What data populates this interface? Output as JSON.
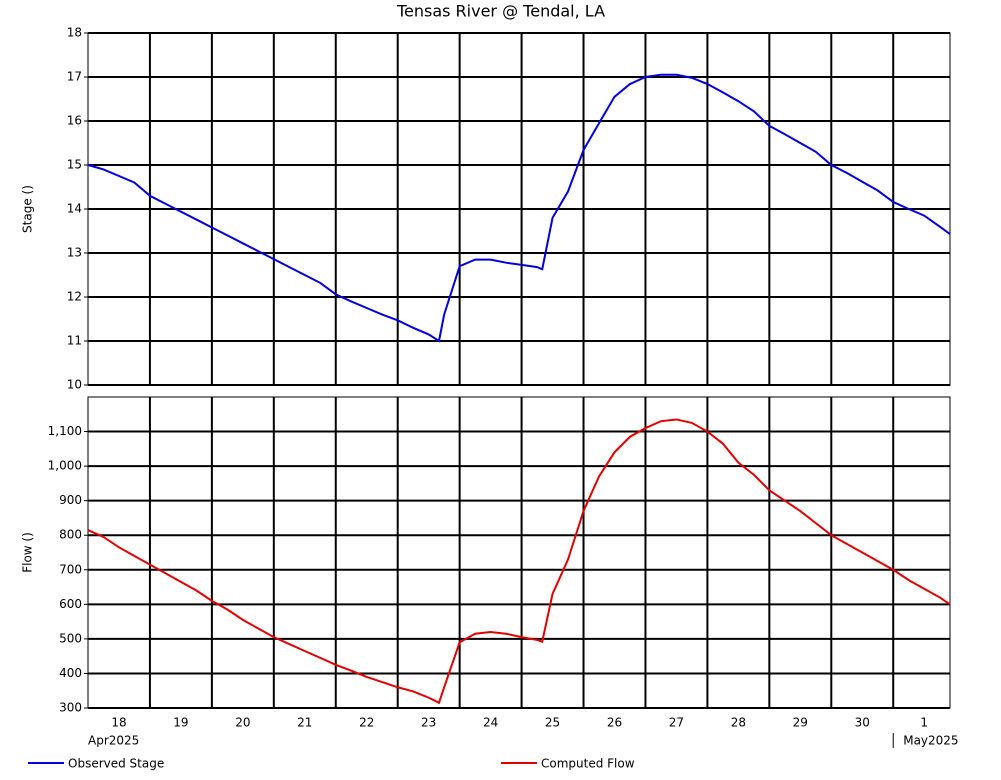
{
  "chart_data": [
    {
      "type": "line",
      "title": "Tensas River @ Tendal, LA",
      "ylabel": "Stage ()",
      "x": [
        "2025-04-18T00:00",
        "2025-04-18T06:00",
        "2025-04-18T12:00",
        "2025-04-18T18:00",
        "2025-04-19T00:00",
        "2025-04-19T06:00",
        "2025-04-19T12:00",
        "2025-04-19T18:00",
        "2025-04-20T00:00",
        "2025-04-20T06:00",
        "2025-04-20T12:00",
        "2025-04-20T18:00",
        "2025-04-21T00:00",
        "2025-04-21T06:00",
        "2025-04-21T12:00",
        "2025-04-21T18:00",
        "2025-04-22T00:00",
        "2025-04-22T06:00",
        "2025-04-22T12:00",
        "2025-04-22T18:00",
        "2025-04-23T00:00",
        "2025-04-23T06:00",
        "2025-04-23T12:00",
        "2025-04-23T16:00",
        "2025-04-23T18:00",
        "2025-04-24T00:00",
        "2025-04-24T06:00",
        "2025-04-24T12:00",
        "2025-04-24T18:00",
        "2025-04-25T00:00",
        "2025-04-25T06:00",
        "2025-04-25T08:00",
        "2025-04-25T12:00",
        "2025-04-25T18:00",
        "2025-04-26T00:00",
        "2025-04-26T06:00",
        "2025-04-26T12:00",
        "2025-04-26T18:00",
        "2025-04-27T00:00",
        "2025-04-27T06:00",
        "2025-04-27T12:00",
        "2025-04-27T18:00",
        "2025-04-28T00:00",
        "2025-04-28T06:00",
        "2025-04-28T12:00",
        "2025-04-28T18:00",
        "2025-04-29T00:00",
        "2025-04-29T06:00",
        "2025-04-29T12:00",
        "2025-04-29T18:00",
        "2025-04-30T00:00",
        "2025-04-30T06:00",
        "2025-04-30T12:00",
        "2025-04-30T18:00",
        "2025-05-01T00:00",
        "2025-05-01T06:00",
        "2025-05-01T12:00",
        "2025-05-01T18:00",
        "2025-05-01T22:00"
      ],
      "series": [
        {
          "name": "Observed Stage",
          "color": "#0000dd",
          "values": [
            15.0,
            14.9,
            14.75,
            14.6,
            14.3,
            14.12,
            13.94,
            13.76,
            13.58,
            13.4,
            13.22,
            13.04,
            12.86,
            12.68,
            12.5,
            12.32,
            12.06,
            11.9,
            11.75,
            11.6,
            11.47,
            11.3,
            11.15,
            11.0,
            11.6,
            12.7,
            12.85,
            12.85,
            12.78,
            12.73,
            12.68,
            12.63,
            13.8,
            14.4,
            15.34,
            15.95,
            16.55,
            16.84,
            17.0,
            17.05,
            17.05,
            16.98,
            16.84,
            16.65,
            16.45,
            16.22,
            15.89,
            15.7,
            15.5,
            15.3,
            15.0,
            14.82,
            14.62,
            14.42,
            14.16,
            14.0,
            13.85,
            13.6,
            13.43
          ]
        }
      ],
      "xlim": [
        "2025-04-18T00:00",
        "2025-05-01T22:00"
      ],
      "xgrid": [
        "2025-04-19T00:00",
        "2025-04-20T00:00",
        "2025-04-21T00:00",
        "2025-04-22T00:00",
        "2025-04-23T00:00",
        "2025-04-24T00:00",
        "2025-04-25T00:00",
        "2025-04-26T00:00",
        "2025-04-27T00:00",
        "2025-04-28T00:00",
        "2025-04-29T00:00",
        "2025-04-30T00:00",
        "2025-05-01T00:00"
      ],
      "ylim": [
        10,
        18
      ],
      "yticks": [
        10,
        11,
        12,
        13,
        14,
        15,
        16,
        17,
        18
      ],
      "grid": true
    },
    {
      "type": "line",
      "ylabel": "Flow ()",
      "x": [
        "2025-04-18T00:00",
        "2025-04-18T06:00",
        "2025-04-18T12:00",
        "2025-04-18T18:00",
        "2025-04-19T00:00",
        "2025-04-19T06:00",
        "2025-04-19T12:00",
        "2025-04-19T18:00",
        "2025-04-20T00:00",
        "2025-04-20T06:00",
        "2025-04-20T12:00",
        "2025-04-20T18:00",
        "2025-04-21T00:00",
        "2025-04-21T06:00",
        "2025-04-21T12:00",
        "2025-04-21T18:00",
        "2025-04-22T00:00",
        "2025-04-22T06:00",
        "2025-04-22T12:00",
        "2025-04-22T18:00",
        "2025-04-23T00:00",
        "2025-04-23T06:00",
        "2025-04-23T12:00",
        "2025-04-23T16:00",
        "2025-04-23T18:00",
        "2025-04-24T00:00",
        "2025-04-24T06:00",
        "2025-04-24T12:00",
        "2025-04-24T18:00",
        "2025-04-25T00:00",
        "2025-04-25T06:00",
        "2025-04-25T08:00",
        "2025-04-25T12:00",
        "2025-04-25T18:00",
        "2025-04-26T00:00",
        "2025-04-26T06:00",
        "2025-04-26T12:00",
        "2025-04-26T18:00",
        "2025-04-27T00:00",
        "2025-04-27T06:00",
        "2025-04-27T12:00",
        "2025-04-27T18:00",
        "2025-04-28T00:00",
        "2025-04-28T06:00",
        "2025-04-28T12:00",
        "2025-04-28T18:00",
        "2025-04-29T00:00",
        "2025-04-29T06:00",
        "2025-04-29T12:00",
        "2025-04-29T18:00",
        "2025-04-30T00:00",
        "2025-04-30T06:00",
        "2025-04-30T12:00",
        "2025-04-30T18:00",
        "2025-05-01T00:00",
        "2025-05-01T06:00",
        "2025-05-01T12:00",
        "2025-05-01T18:00",
        "2025-05-01T22:00"
      ],
      "series": [
        {
          "name": "Computed Flow",
          "color": "#e00000",
          "values": [
            815,
            795,
            765,
            740,
            715,
            690,
            665,
            640,
            610,
            585,
            555,
            530,
            505,
            485,
            465,
            445,
            425,
            408,
            390,
            375,
            360,
            348,
            330,
            315,
            360,
            490,
            515,
            520,
            515,
            505,
            497,
            492,
            630,
            730,
            870,
            970,
            1040,
            1085,
            1110,
            1130,
            1135,
            1125,
            1100,
            1065,
            1010,
            975,
            930,
            900,
            870,
            835,
            800,
            775,
            750,
            725,
            700,
            670,
            645,
            620,
            600
          ]
        }
      ],
      "xlim": [
        "2025-04-18T00:00",
        "2025-05-01T22:00"
      ],
      "xgrid": [
        "2025-04-19T00:00",
        "2025-04-20T00:00",
        "2025-04-21T00:00",
        "2025-04-22T00:00",
        "2025-04-23T00:00",
        "2025-04-24T00:00",
        "2025-04-25T00:00",
        "2025-04-26T00:00",
        "2025-04-27T00:00",
        "2025-04-28T00:00",
        "2025-04-29T00:00",
        "2025-04-30T00:00",
        "2025-05-01T00:00"
      ],
      "xticks": [
        {
          "value": "2025-04-18T12:00",
          "label": "18"
        },
        {
          "value": "2025-04-19T12:00",
          "label": "19"
        },
        {
          "value": "2025-04-20T12:00",
          "label": "20"
        },
        {
          "value": "2025-04-21T12:00",
          "label": "21"
        },
        {
          "value": "2025-04-22T12:00",
          "label": "22"
        },
        {
          "value": "2025-04-23T12:00",
          "label": "23"
        },
        {
          "value": "2025-04-24T12:00",
          "label": "24"
        },
        {
          "value": "2025-04-25T12:00",
          "label": "25"
        },
        {
          "value": "2025-04-26T12:00",
          "label": "26"
        },
        {
          "value": "2025-04-27T12:00",
          "label": "27"
        },
        {
          "value": "2025-04-28T12:00",
          "label": "28"
        },
        {
          "value": "2025-04-29T12:00",
          "label": "29"
        },
        {
          "value": "2025-04-30T12:00",
          "label": "30"
        },
        {
          "value": "2025-05-01T12:00",
          "label": "1"
        }
      ],
      "xperiods": [
        {
          "value": "2025-04-18T00:00",
          "label": "Apr2025"
        },
        {
          "value": "2025-05-01T00:00",
          "label": "May2025"
        }
      ],
      "ylim": [
        300,
        1200
      ],
      "yticks": [
        300,
        400,
        500,
        600,
        700,
        800,
        900,
        {
          "value": 1000,
          "label": "1,000"
        },
        {
          "value": 1100,
          "label": "1,100"
        }
      ],
      "grid": true
    }
  ]
}
